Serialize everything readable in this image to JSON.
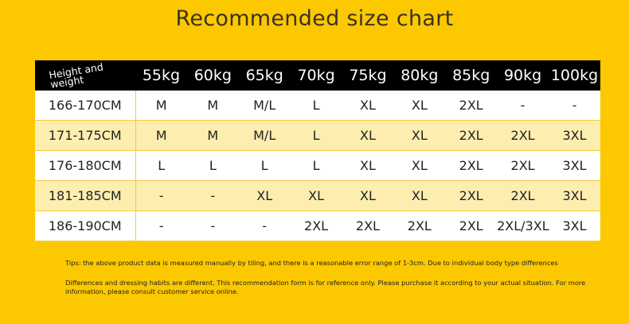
{
  "header": {
    "title": "Recommended size chart"
  },
  "table": {
    "corner": "Height and weight",
    "columns": [
      "55kg",
      "60kg",
      "65kg",
      "70kg",
      "75kg",
      "80kg",
      "85kg",
      "90kg",
      "100kg"
    ],
    "rows": [
      [
        "166-170CM",
        "M",
        "M",
        "M/L",
        "L",
        "XL",
        "XL",
        "2XL",
        "-",
        "-"
      ],
      [
        "171-175CM",
        "M",
        "M",
        "M/L",
        "L",
        "XL",
        "XL",
        "2XL",
        "2XL",
        "3XL"
      ],
      [
        "176-180CM",
        "L",
        "L",
        "L",
        "L",
        "XL",
        "XL",
        "2XL",
        "2XL",
        "3XL"
      ],
      [
        "181-185CM",
        "-",
        "-",
        "XL",
        "XL",
        "XL",
        "XL",
        "2XL",
        "2XL",
        "3XL"
      ],
      [
        "186-190CM",
        "-",
        "-",
        "-",
        "2XL",
        "2XL",
        "2XL",
        "2XL",
        "2XL/3XL",
        "3XL"
      ]
    ]
  },
  "tips": [
    "Tips: the above product data is measured manually by tiling, and there is a reasonable error range of 1-3cm. Due to individual body type differences",
    "Differences and dressing habits are different. This recommendation form is for reference only. Please purchase it according to your actual situation. For more information, please consult customer service online."
  ]
}
